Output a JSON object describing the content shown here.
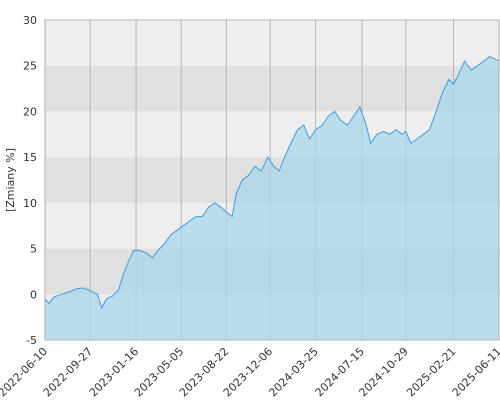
{
  "chart_data": {
    "type": "area",
    "y_label": "[Zmiany %]",
    "x": [
      "2022-06-10",
      "2022-06-20",
      "2022-07-01",
      "2022-07-20",
      "2022-08-10",
      "2022-08-25",
      "2022-09-10",
      "2022-09-27",
      "2022-10-15",
      "2022-10-25",
      "2022-11-05",
      "2022-11-20",
      "2022-12-05",
      "2022-12-15",
      "2022-12-28",
      "2023-01-10",
      "2023-01-25",
      "2023-02-10",
      "2023-02-25",
      "2023-03-10",
      "2023-03-25",
      "2023-04-10",
      "2023-04-25",
      "2023-05-10",
      "2023-05-25",
      "2023-06-10",
      "2023-06-25",
      "2023-07-10",
      "2023-07-25",
      "2023-08-10",
      "2023-08-22",
      "2023-09-05",
      "2023-09-15",
      "2023-09-30",
      "2023-10-15",
      "2023-10-30",
      "2023-11-15",
      "2023-11-30",
      "2023-12-15",
      "2023-12-28",
      "2024-01-10",
      "2024-01-25",
      "2024-02-10",
      "2024-02-25",
      "2024-03-10",
      "2024-03-25",
      "2024-04-10",
      "2024-04-25",
      "2024-05-10",
      "2024-05-25",
      "2024-06-10",
      "2024-06-25",
      "2024-07-10",
      "2024-07-25",
      "2024-08-05",
      "2024-08-20",
      "2024-09-05",
      "2024-09-20",
      "2024-10-05",
      "2024-10-20",
      "2024-10-29",
      "2024-11-10",
      "2024-11-25",
      "2024-12-10",
      "2024-12-25",
      "2025-01-10",
      "2025-01-25",
      "2025-02-10",
      "2025-02-21",
      "2025-03-05",
      "2025-03-20",
      "2025-04-05",
      "2025-04-20",
      "2025-05-05",
      "2025-05-20",
      "2025-06-11"
    ],
    "values": [
      -0.5,
      -1.0,
      -0.3,
      0.0,
      0.3,
      0.6,
      0.7,
      0.4,
      0.0,
      -1.5,
      -0.5,
      -0.2,
      0.5,
      2.0,
      3.5,
      4.8,
      4.8,
      4.5,
      4.0,
      4.8,
      5.5,
      6.5,
      7.0,
      7.5,
      8.0,
      8.5,
      8.5,
      9.5,
      10.0,
      9.5,
      9.0,
      8.5,
      11.0,
      12.5,
      13.0,
      14.0,
      13.5,
      15.0,
      14.0,
      13.5,
      15.0,
      16.5,
      18.0,
      18.5,
      17.0,
      18.0,
      18.5,
      19.5,
      20.0,
      19.0,
      18.5,
      19.5,
      20.5,
      18.5,
      16.5,
      17.5,
      17.8,
      17.5,
      18.0,
      17.5,
      17.8,
      16.5,
      17.0,
      17.5,
      18.0,
      20.0,
      22.0,
      23.5,
      23.0,
      24.0,
      25.5,
      24.5,
      25.0,
      25.5,
      26.0,
      25.5
    ],
    "line_color": "#3d9be0",
    "fill_color": "#a9d6ea",
    "band_colors": [
      "#eeeeee",
      "#e0e0e0"
    ],
    "grid_color": "#aaaaaa",
    "xlim": [
      "2022-06-10",
      "2025-06-11"
    ],
    "xticks": [
      "2022-06-10",
      "2022-09-27",
      "2023-01-16",
      "2023-05-05",
      "2023-08-22",
      "2023-12-06",
      "2024-03-25",
      "2024-07-15",
      "2024-10-29",
      "2025-02-21",
      "2025-06-11"
    ],
    "ylim": [
      -5,
      30
    ],
    "yticks": [
      -5,
      0,
      5,
      10,
      15,
      20,
      25,
      30
    ]
  }
}
